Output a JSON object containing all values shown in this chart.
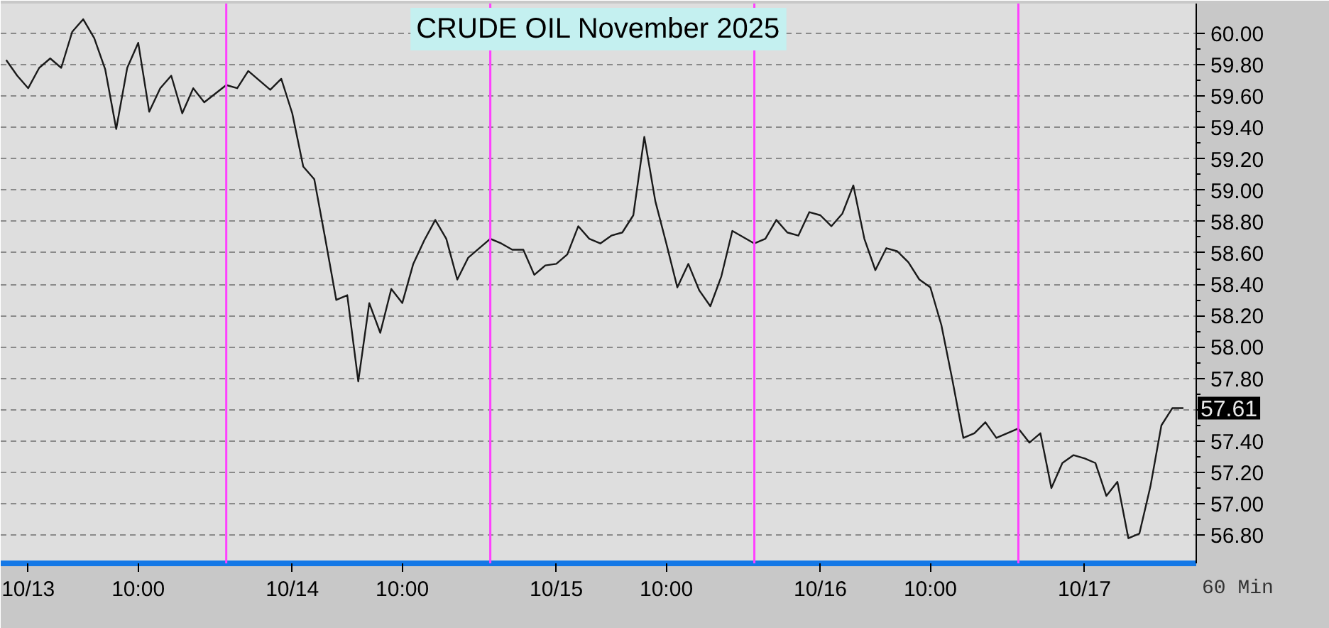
{
  "chart_data": {
    "type": "line",
    "title": "CRUDE OIL November 2025",
    "x": [
      "2025-10-12T22:00",
      "2025-10-12T23:00",
      "2025-10-13T00:00",
      "2025-10-13T01:00",
      "2025-10-13T02:00",
      "2025-10-13T03:00",
      "2025-10-13T04:00",
      "2025-10-13T05:00",
      "2025-10-13T06:00",
      "2025-10-13T07:00",
      "2025-10-13T08:00",
      "2025-10-13T09:00",
      "2025-10-13T10:00",
      "2025-10-13T11:00",
      "2025-10-13T12:00",
      "2025-10-13T13:00",
      "2025-10-13T14:00",
      "2025-10-13T15:00",
      "2025-10-13T16:00",
      "2025-10-13T18:00",
      "2025-10-13T19:00",
      "2025-10-13T20:00",
      "2025-10-13T21:00",
      "2025-10-13T22:00",
      "2025-10-13T23:00",
      "2025-10-14T00:00",
      "2025-10-14T01:00",
      "2025-10-14T02:00",
      "2025-10-14T03:00",
      "2025-10-14T04:00",
      "2025-10-14T05:00",
      "2025-10-14T06:00",
      "2025-10-14T07:00",
      "2025-10-14T08:00",
      "2025-10-14T09:00",
      "2025-10-14T10:00",
      "2025-10-14T11:00",
      "2025-10-14T12:00",
      "2025-10-14T13:00",
      "2025-10-14T14:00",
      "2025-10-14T15:00",
      "2025-10-14T16:00",
      "2025-10-14T18:00",
      "2025-10-14T19:00",
      "2025-10-14T20:00",
      "2025-10-14T21:00",
      "2025-10-14T22:00",
      "2025-10-14T23:00",
      "2025-10-15T00:00",
      "2025-10-15T01:00",
      "2025-10-15T02:00",
      "2025-10-15T03:00",
      "2025-10-15T04:00",
      "2025-10-15T05:00",
      "2025-10-15T06:00",
      "2025-10-15T07:00",
      "2025-10-15T08:00",
      "2025-10-15T09:00",
      "2025-10-15T10:00",
      "2025-10-15T11:00",
      "2025-10-15T12:00",
      "2025-10-15T13:00",
      "2025-10-15T14:00",
      "2025-10-15T15:00",
      "2025-10-15T16:00",
      "2025-10-15T18:00",
      "2025-10-15T19:00",
      "2025-10-15T20:00",
      "2025-10-15T21:00",
      "2025-10-15T22:00",
      "2025-10-15T23:00",
      "2025-10-16T00:00",
      "2025-10-16T01:00",
      "2025-10-16T02:00",
      "2025-10-16T03:00",
      "2025-10-16T04:00",
      "2025-10-16T05:00",
      "2025-10-16T06:00",
      "2025-10-16T07:00",
      "2025-10-16T08:00",
      "2025-10-16T09:00",
      "2025-10-16T10:00",
      "2025-10-16T11:00",
      "2025-10-16T12:00",
      "2025-10-16T13:00",
      "2025-10-16T14:00",
      "2025-10-16T15:00",
      "2025-10-16T16:00",
      "2025-10-16T18:00",
      "2025-10-16T19:00",
      "2025-10-16T20:00",
      "2025-10-16T21:00",
      "2025-10-16T22:00",
      "2025-10-16T23:00",
      "2025-10-17T00:00",
      "2025-10-17T01:00",
      "2025-10-17T02:00",
      "2025-10-17T03:00",
      "2025-10-17T04:00",
      "2025-10-17T05:00",
      "2025-10-17T06:00",
      "2025-10-17T07:00",
      "2025-10-17T08:00",
      "2025-10-17T09:00"
    ],
    "series": [
      {
        "color": "#1a1a1a",
        "values": [
          59.83,
          59.73,
          59.65,
          59.78,
          59.84,
          59.78,
          60.01,
          60.09,
          59.97,
          59.77,
          59.39,
          59.78,
          59.94,
          59.5,
          59.65,
          59.73,
          59.49,
          59.65,
          59.56,
          59.67,
          59.65,
          59.76,
          59.7,
          59.64,
          59.71,
          59.49,
          59.15,
          59.07,
          58.69,
          58.3,
          58.33,
          57.78,
          58.28,
          58.09,
          58.37,
          58.28,
          58.53,
          58.68,
          58.81,
          58.69,
          58.43,
          58.57,
          58.69,
          58.66,
          58.62,
          58.62,
          58.46,
          58.52,
          58.53,
          58.59,
          58.77,
          58.69,
          58.66,
          58.71,
          58.73,
          58.84,
          59.34,
          58.93,
          58.66,
          58.38,
          58.53,
          58.36,
          58.26,
          58.45,
          58.74,
          58.66,
          58.69,
          58.81,
          58.73,
          58.71,
          58.86,
          58.84,
          58.77,
          58.85,
          59.03,
          58.69,
          58.49,
          58.63,
          58.61,
          58.54,
          58.43,
          58.38,
          58.14,
          57.79,
          57.42,
          57.45,
          57.52,
          57.42,
          57.48,
          57.39,
          57.45,
          57.1,
          57.26,
          57.31,
          57.29,
          57.26,
          57.05,
          57.14,
          56.78,
          56.81,
          57.11,
          57.5,
          57.61,
          57.61
        ],
        "value_labels": [
          null,
          null,
          null,
          null,
          null,
          null,
          null,
          null,
          null,
          null,
          null,
          null,
          null,
          null,
          null,
          null,
          null,
          null,
          null,
          null,
          null,
          null,
          null,
          null,
          null,
          null,
          null,
          null,
          null,
          null,
          null,
          null,
          null,
          null,
          null,
          null,
          null,
          null,
          null,
          null,
          null,
          null,
          null,
          null,
          null,
          null,
          null,
          null,
          null,
          null,
          null,
          null,
          null,
          null,
          null,
          null,
          null,
          null,
          null,
          null,
          null,
          null,
          null,
          null,
          null,
          null,
          null,
          null,
          null,
          null,
          null,
          null,
          null,
          null,
          null,
          null,
          null,
          null,
          null,
          null,
          null,
          null,
          null,
          null,
          null,
          null,
          null,
          null,
          null,
          null,
          null,
          null,
          null,
          null,
          null,
          null,
          null,
          null,
          null,
          null,
          null,
          null,
          null,
          "57.61"
        ]
      }
    ],
    "xlim": [
      "2025-10-12T21:30",
      "2025-10-17T10:10"
    ],
    "xticks": [
      {
        "value": "2025-10-13T00:00",
        "label": "10/13"
      },
      {
        "value": "2025-10-13T10:00",
        "label": "10:00"
      },
      {
        "value": "2025-10-14T00:00",
        "label": "10/14"
      },
      {
        "value": "2025-10-14T10:00",
        "label": "10:00"
      },
      {
        "value": "2025-10-15T00:00",
        "label": "10/15"
      },
      {
        "value": "2025-10-15T10:00",
        "label": "10:00"
      },
      {
        "value": "2025-10-16T00:00",
        "label": "10/16"
      },
      {
        "value": "2025-10-16T10:00",
        "label": "10:00"
      },
      {
        "value": "2025-10-17T00:00",
        "label": "10/17"
      }
    ],
    "ylim": [
      56.62,
      60.19
    ],
    "yticks": [
      {
        "value": 56.8,
        "label": "56.80"
      },
      {
        "value": 57.0,
        "label": "57.00"
      },
      {
        "value": 57.2,
        "label": "57.20"
      },
      {
        "value": 57.4,
        "label": "57.40"
      },
      {
        "value": 57.6,
        "label": null
      },
      {
        "value": 57.8,
        "label": "57.80"
      },
      {
        "value": 58.0,
        "label": "58.00"
      },
      {
        "value": 58.2,
        "label": "58.20"
      },
      {
        "value": 58.4,
        "label": "58.40"
      },
      {
        "value": 58.6,
        "label": "58.60"
      },
      {
        "value": 58.8,
        "label": "58.80"
      },
      {
        "value": 59.0,
        "label": "59.00"
      },
      {
        "value": 59.2,
        "label": "59.20"
      },
      {
        "value": 59.4,
        "label": "59.40"
      },
      {
        "value": 59.6,
        "label": "59.60"
      },
      {
        "value": 59.8,
        "label": "59.80"
      },
      {
        "value": 60.0,
        "label": "60.00"
      }
    ],
    "grid": "y",
    "ref_lines": [
      {
        "axis": "x",
        "value": "2025-10-13T18:00",
        "color": "#ff40ff"
      },
      {
        "axis": "x",
        "value": "2025-10-14T18:00",
        "color": "#ff40ff"
      },
      {
        "axis": "x",
        "value": "2025-10-15T18:00",
        "color": "#ff40ff"
      },
      {
        "axis": "x",
        "value": "2025-10-16T18:00",
        "color": "#ff40ff"
      }
    ],
    "annotations": [
      "60 Min"
    ]
  }
}
